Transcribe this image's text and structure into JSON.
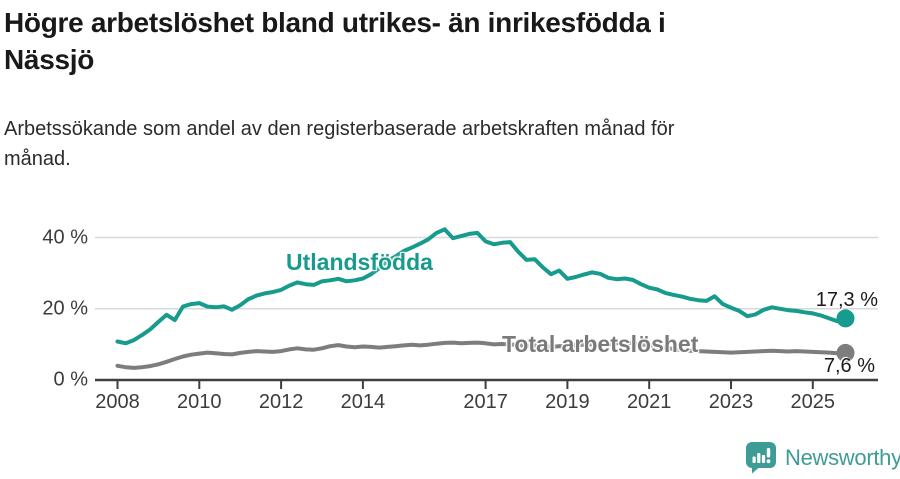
{
  "page": {
    "title_line1": "Högre arbetslöshet bland utrikes- än inrikesfödda i",
    "title_line2": "Nässjö",
    "subtitle_line1": "Arbetssökande som andel av den registerbaserade arbetskraften månad för",
    "subtitle_line2": "månad."
  },
  "footer": {
    "brand": "Newsworthy",
    "brand_color": "#3e9c96"
  },
  "colors": {
    "accent_teal": "#169b8d",
    "line_gray": "#7d7d7d",
    "grid": "#d8d8d8",
    "axis": "#3f3f3f",
    "text_dark": "#1a1a1a"
  },
  "chart_data": {
    "type": "line",
    "title": "Högre arbetslöshet bland utrikes- än inrikesfödda i Nässjö",
    "subtitle": "Arbetssökande som andel av den registerbaserade arbetskraften månad för månad.",
    "xlabel": "",
    "ylabel": "",
    "unit": "%",
    "xlim": [
      2007.45,
      2026.6
    ],
    "ylim": [
      0,
      44
    ],
    "grid": "horizontal",
    "legend_position": "inline",
    "xticks": [
      2008,
      2010,
      2012,
      2014,
      2017,
      2019,
      2021,
      2023,
      2025
    ],
    "xtick_labels": [
      "2008",
      "2010",
      "2012",
      "2014",
      "2017",
      "2019",
      "2021",
      "2023",
      "2025"
    ],
    "yticks": [
      0,
      20,
      40
    ],
    "ytick_labels": [
      "0 %",
      "20 %",
      "40 %"
    ],
    "grid_color": "#d8d8d8",
    "axis_color": "#3f3f3f",
    "series": [
      {
        "name": "Utlandsfödda",
        "color": "#169b8d",
        "end_label": "17,3 %",
        "end_value": 17.3,
        "x_start": 2008.0,
        "x_step": 0.2,
        "values": [
          10.8,
          10.3,
          11.2,
          12.6,
          14.2,
          16.3,
          18.3,
          16.8,
          20.6,
          21.3,
          21.6,
          20.6,
          20.4,
          20.7,
          19.7,
          21.0,
          22.7,
          23.7,
          24.3,
          24.7,
          25.3,
          26.5,
          27.4,
          26.9,
          26.7,
          27.7,
          28.0,
          28.4,
          27.7,
          28.0,
          28.5,
          29.7,
          31.4,
          33.4,
          34.7,
          36.2,
          37.2,
          38.3,
          39.5,
          41.3,
          42.3,
          39.8,
          40.4,
          41.0,
          41.3,
          38.9,
          38.1,
          38.5,
          38.7,
          36.0,
          33.7,
          33.9,
          31.6,
          29.7,
          30.7,
          28.4,
          28.9,
          29.6,
          30.2,
          29.8,
          28.7,
          28.3,
          28.5,
          28.1,
          26.9,
          25.9,
          25.4,
          24.4,
          23.9,
          23.4,
          22.8,
          22.4,
          22.2,
          23.5,
          21.3,
          20.3,
          19.4,
          17.9,
          18.4,
          19.7,
          20.4,
          20.0,
          19.6,
          19.4,
          19.0,
          18.7,
          18.1,
          17.3,
          16.5,
          17.3
        ]
      },
      {
        "name": "Total arbetslöshet",
        "color": "#7d7d7d",
        "end_label": "7,6 %",
        "end_value": 7.6,
        "x_start": 2008.0,
        "x_step": 0.2,
        "values": [
          4.0,
          3.6,
          3.4,
          3.6,
          3.9,
          4.4,
          5.1,
          5.9,
          6.6,
          7.1,
          7.4,
          7.7,
          7.5,
          7.3,
          7.2,
          7.6,
          7.9,
          8.1,
          8.0,
          7.9,
          8.1,
          8.6,
          8.9,
          8.6,
          8.5,
          8.9,
          9.5,
          9.8,
          9.4,
          9.2,
          9.4,
          9.3,
          9.1,
          9.3,
          9.5,
          9.7,
          9.9,
          9.7,
          9.9,
          10.2,
          10.4,
          10.5,
          10.3,
          10.4,
          10.5,
          10.3,
          10.0,
          10.1,
          10.0,
          9.8,
          9.6,
          9.7,
          9.5,
          9.3,
          9.5,
          9.6,
          9.8,
          9.9,
          10.0,
          9.9,
          10.0,
          10.3,
          10.5,
          10.3,
          10.0,
          9.7,
          9.4,
          9.0,
          8.7,
          8.4,
          8.2,
          8.1,
          8.0,
          7.9,
          7.8,
          7.7,
          7.8,
          7.9,
          8.0,
          8.1,
          8.2,
          8.1,
          8.0,
          8.1,
          8.0,
          7.9,
          7.8,
          7.7,
          7.5,
          7.6
        ]
      }
    ]
  }
}
